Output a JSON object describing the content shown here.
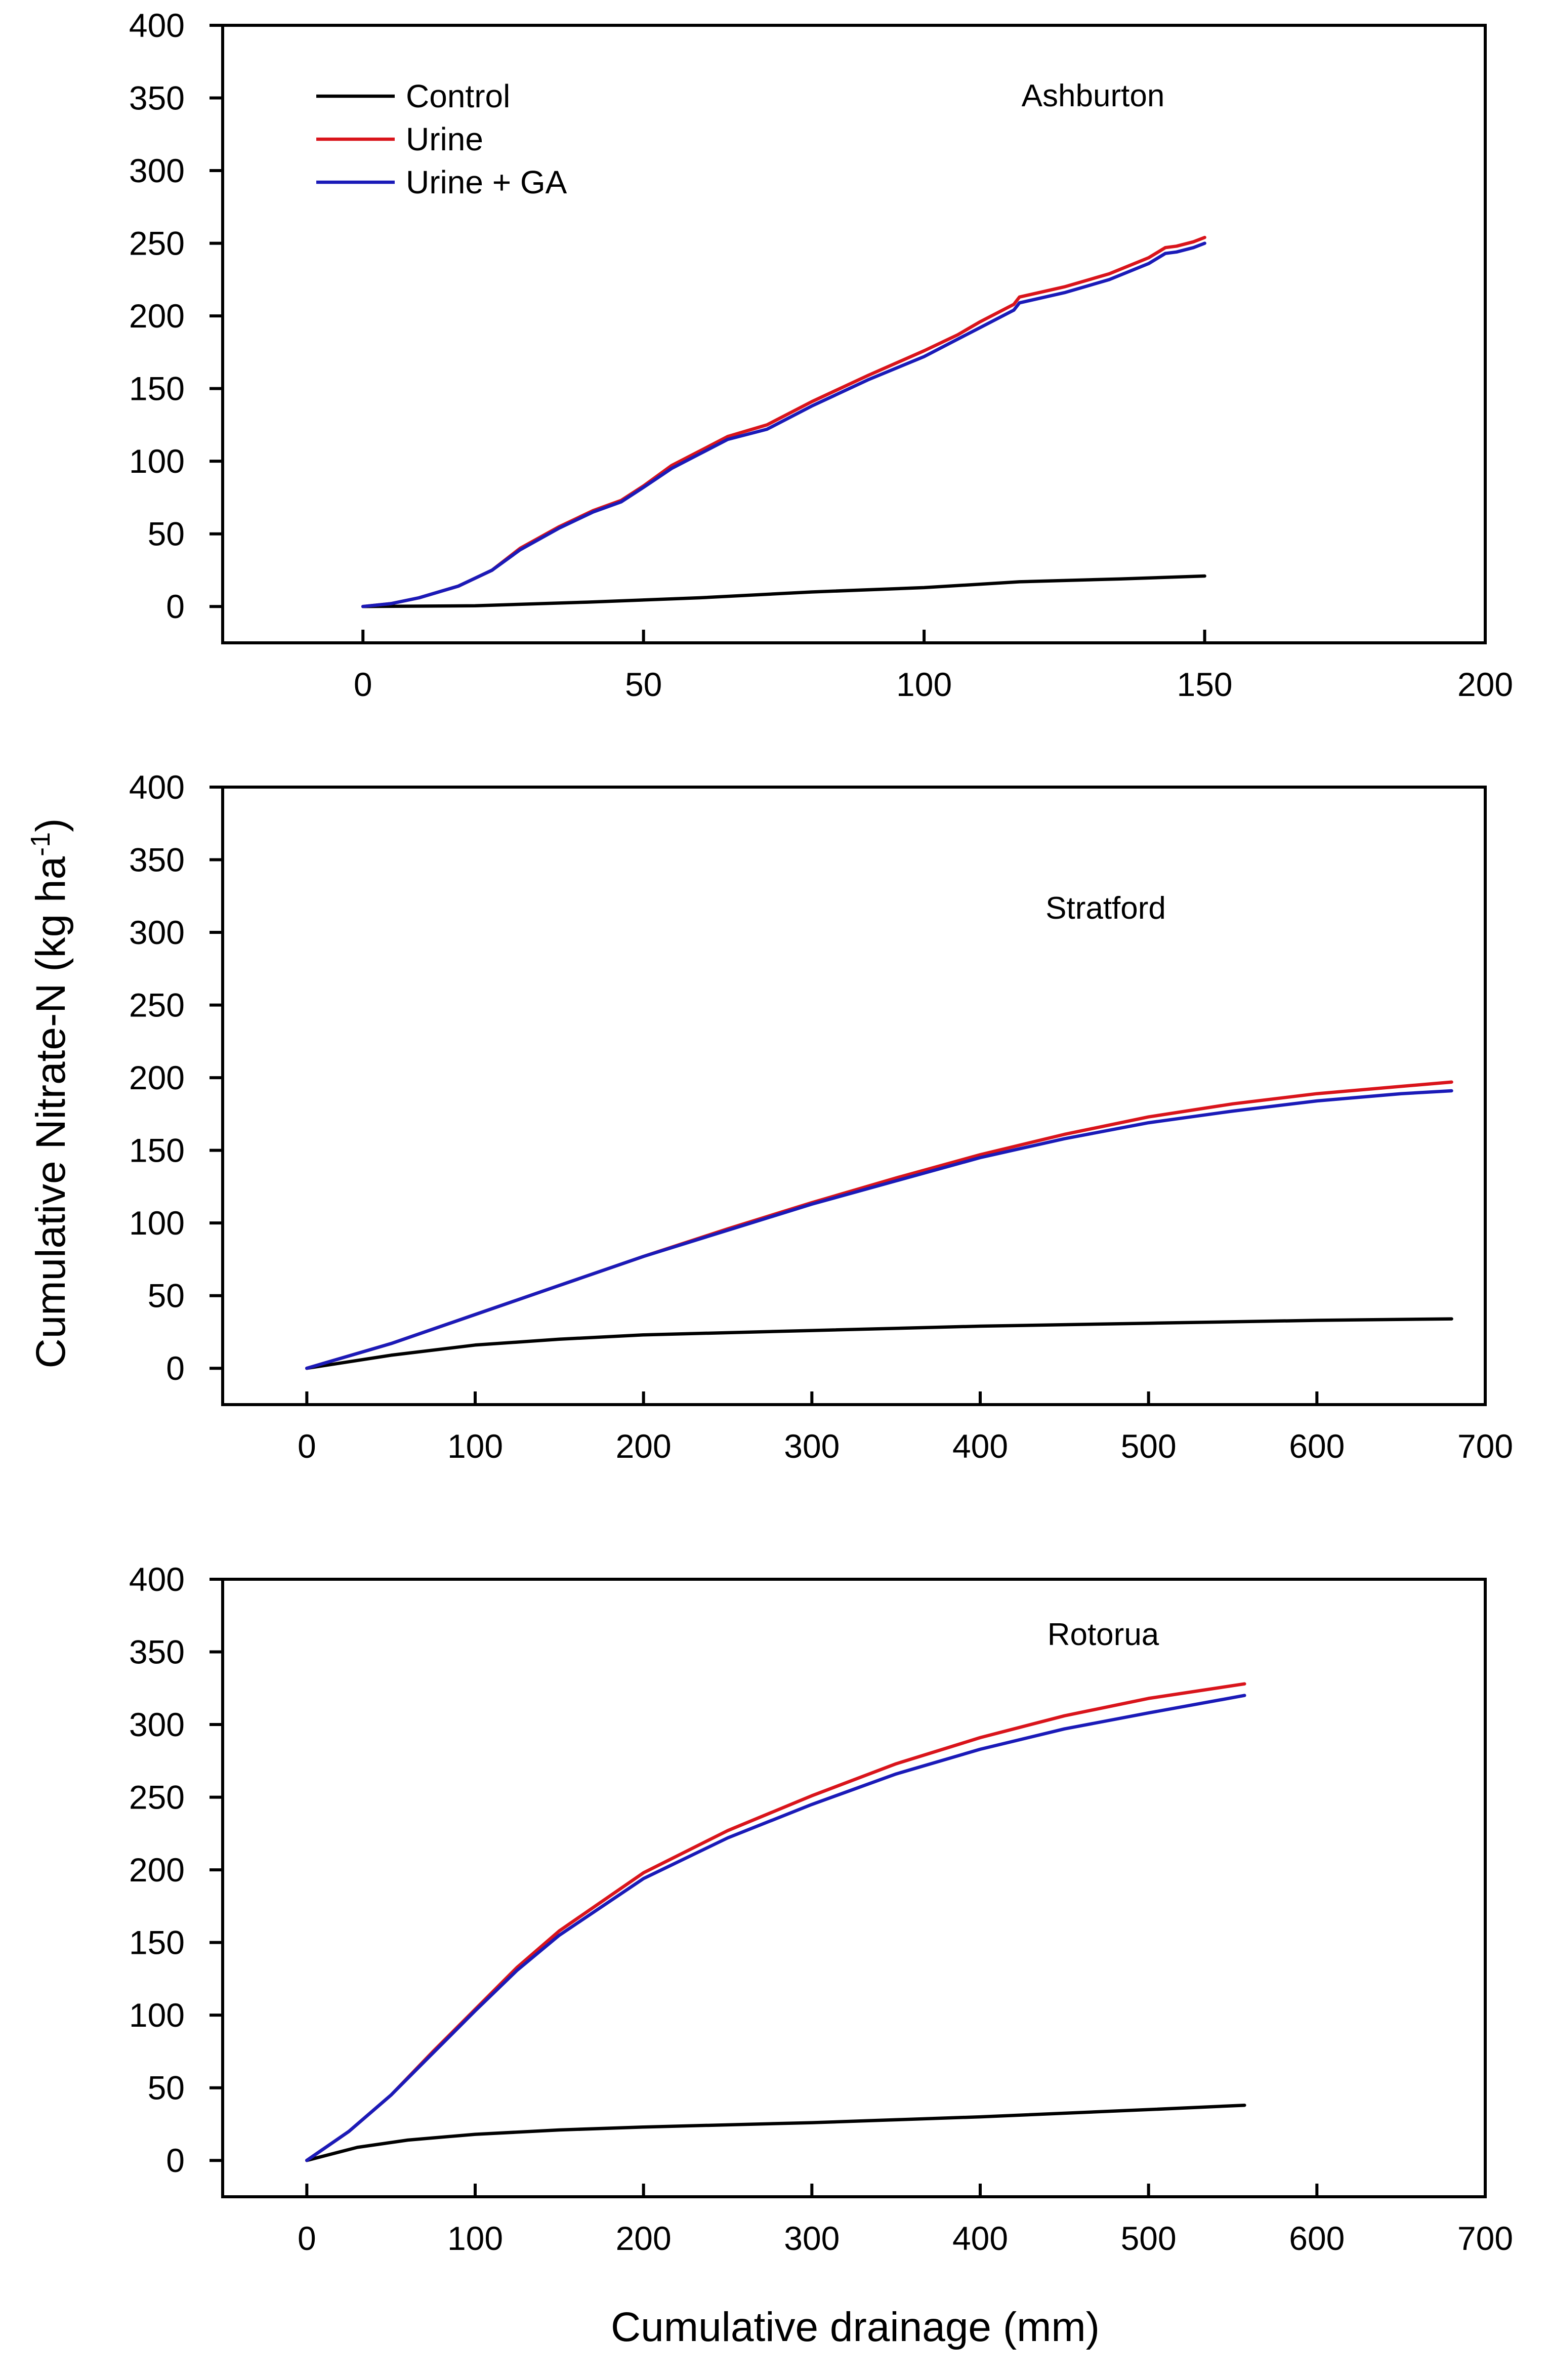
{
  "figure": {
    "ylabel": "Cumulative Nitrate-N (kg ha",
    "ylabel_sup": "-1",
    "ylabel_close": ")",
    "xlabel": "Cumulative drainage (mm)"
  },
  "legend": {
    "items": [
      {
        "name": "Control",
        "color": "#000000"
      },
      {
        "name": "Urine",
        "color": "#d9141b"
      },
      {
        "name": "Urine + GA",
        "color": "#1a1ab8"
      }
    ]
  },
  "chart_data": [
    {
      "type": "line",
      "title": "Ashburton",
      "xlabel": "",
      "ylabel": "",
      "xlim": [
        -25,
        200
      ],
      "ylim": [
        -25,
        400
      ],
      "xticks": [
        0,
        50,
        100,
        150,
        200
      ],
      "yticks": [
        0,
        50,
        100,
        150,
        200,
        250,
        300,
        350,
        400
      ],
      "series": [
        {
          "name": "Control",
          "color": "#000000",
          "x": [
            0,
            20,
            40,
            60,
            80,
            100,
            117,
            135,
            150
          ],
          "y": [
            0,
            0.5,
            3,
            6,
            10,
            13,
            17,
            19,
            21
          ]
        },
        {
          "name": "Urine",
          "color": "#d9141b",
          "x": [
            0,
            5,
            10,
            17,
            23,
            28,
            35,
            41,
            46,
            50,
            55,
            60,
            65,
            72,
            80,
            90,
            100,
            106,
            110,
            116,
            117,
            125,
            133,
            140,
            143,
            145,
            148,
            150
          ],
          "y": [
            0,
            2,
            6,
            14,
            25,
            40,
            55,
            66,
            73,
            83,
            97,
            107,
            117,
            125,
            141,
            159,
            176,
            187,
            196,
            208,
            213,
            220,
            229,
            240,
            247,
            248,
            251,
            254
          ]
        },
        {
          "name": "Urine + GA",
          "color": "#1a1ab8",
          "x": [
            0,
            5,
            10,
            17,
            23,
            28,
            35,
            41,
            46,
            50,
            55,
            60,
            65,
            72,
            80,
            90,
            100,
            106,
            110,
            116,
            117,
            125,
            133,
            140,
            143,
            145,
            148,
            150
          ],
          "y": [
            0,
            2,
            6,
            14,
            25,
            39,
            54,
            65,
            72,
            82,
            95,
            105,
            115,
            122,
            138,
            156,
            172,
            184,
            192,
            204,
            209,
            216,
            225,
            236,
            243,
            244,
            247,
            250
          ]
        }
      ]
    },
    {
      "type": "line",
      "title": "Stratford",
      "xlabel": "",
      "ylabel": "",
      "xlim": [
        -50,
        700
      ],
      "ylim": [
        -25,
        400
      ],
      "xticks": [
        0,
        100,
        200,
        300,
        400,
        500,
        600,
        700
      ],
      "yticks": [
        0,
        50,
        100,
        150,
        200,
        250,
        300,
        350,
        400
      ],
      "series": [
        {
          "name": "Control",
          "color": "#000000",
          "x": [
            0,
            50,
            100,
            150,
            200,
            300,
            400,
            500,
            600,
            680
          ],
          "y": [
            0,
            9,
            16,
            20,
            23,
            26,
            29,
            31,
            33,
            34
          ]
        },
        {
          "name": "Urine",
          "color": "#d9141b",
          "x": [
            0,
            50,
            100,
            150,
            200,
            250,
            300,
            350,
            400,
            450,
            500,
            550,
            600,
            650,
            680
          ],
          "y": [
            0,
            17,
            37,
            57,
            77,
            96,
            114,
            131,
            147,
            161,
            173,
            182,
            189,
            194,
            197
          ]
        },
        {
          "name": "Urine + GA",
          "color": "#1a1ab8",
          "x": [
            0,
            50,
            100,
            150,
            200,
            250,
            300,
            350,
            400,
            450,
            500,
            550,
            600,
            650,
            680
          ],
          "y": [
            0,
            17,
            37,
            57,
            77,
            95,
            113,
            129,
            145,
            158,
            169,
            177,
            184,
            189,
            191
          ]
        }
      ]
    },
    {
      "type": "line",
      "title": "Rotorua",
      "xlabel": "",
      "ylabel": "",
      "xlim": [
        -50,
        700
      ],
      "ylim": [
        -25,
        400
      ],
      "xticks": [
        0,
        100,
        200,
        300,
        400,
        500,
        600,
        700
      ],
      "yticks": [
        0,
        50,
        100,
        150,
        200,
        250,
        300,
        350,
        400
      ],
      "series": [
        {
          "name": "Control",
          "color": "#000000",
          "x": [
            0,
            30,
            60,
            100,
            150,
            200,
            300,
            400,
            500,
            557
          ],
          "y": [
            0,
            9,
            14,
            18,
            21,
            23,
            26,
            30,
            35,
            38
          ]
        },
        {
          "name": "Urine",
          "color": "#d9141b",
          "x": [
            0,
            25,
            50,
            75,
            100,
            125,
            150,
            200,
            250,
            300,
            350,
            400,
            450,
            500,
            557
          ],
          "y": [
            0,
            20,
            45,
            75,
            104,
            133,
            158,
            198,
            227,
            251,
            273,
            291,
            306,
            318,
            328
          ]
        },
        {
          "name": "Urine + GA",
          "color": "#1a1ab8",
          "x": [
            0,
            25,
            50,
            75,
            100,
            125,
            150,
            200,
            250,
            300,
            350,
            400,
            450,
            500,
            557
          ],
          "y": [
            0,
            20,
            45,
            74,
            103,
            131,
            155,
            194,
            222,
            245,
            266,
            283,
            297,
            308,
            320
          ]
        }
      ]
    }
  ]
}
